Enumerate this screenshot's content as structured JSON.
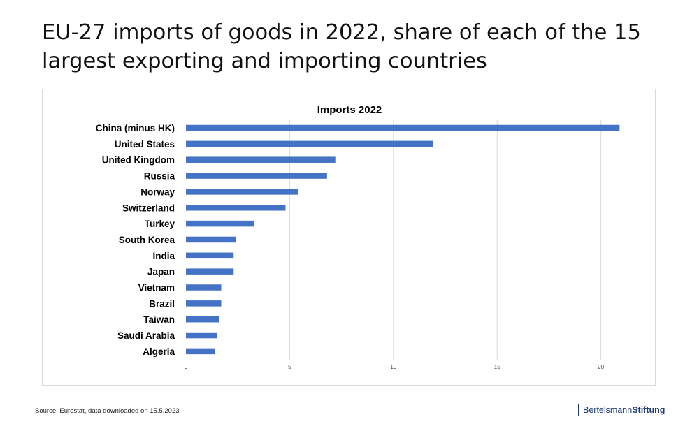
{
  "page": {
    "title": "EU-27  imports of goods in 2022, share of each of the 15 largest exporting and importing countries",
    "source": "Source: Eurostat, data downloaded on 15.5.2023",
    "brand_part1": "Bertelsmann",
    "brand_part2": "Stiftung"
  },
  "chart_data": {
    "type": "bar",
    "orientation": "horizontal",
    "title": "Imports 2022",
    "xlabel": "",
    "ylabel": "",
    "categories": [
      "China (minus HK)",
      "United States",
      "United Kingdom",
      "Russia",
      "Norway",
      "Switzerland",
      "Turkey",
      "South Korea",
      "India",
      "Japan",
      "Vietnam",
      "Brazil",
      "Taiwan",
      "Saudi Arabia",
      "Algeria"
    ],
    "values": [
      20.9,
      11.9,
      7.2,
      6.8,
      5.4,
      4.8,
      3.3,
      2.4,
      2.3,
      2.3,
      1.7,
      1.7,
      1.6,
      1.5,
      1.4
    ],
    "xlim": [
      0,
      22
    ],
    "xticks": [
      0,
      5,
      10,
      15,
      20
    ],
    "grid": true,
    "legend": "none",
    "bar_color": "#4472c4",
    "grid_color": "#d9d9d9"
  }
}
